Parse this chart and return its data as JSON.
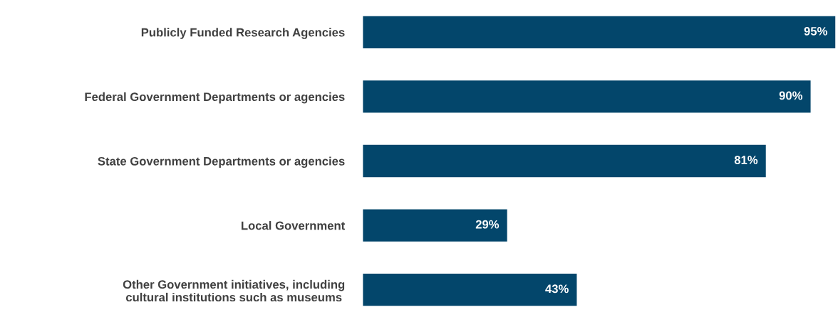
{
  "chart_data": {
    "type": "bar",
    "orientation": "horizontal",
    "categories": [
      "Publicly Funded Research Agencies",
      "Federal Government Departments or agencies",
      "State Government Departments or agencies",
      "Local Government",
      "Other Government initiatives, including\ncultural institutions such as museums"
    ],
    "values": [
      95,
      90,
      81,
      29,
      43
    ],
    "value_labels": [
      "95%",
      "90%",
      "81%",
      "29%",
      "43%"
    ],
    "color": "#03466b",
    "grid": false,
    "legend": false,
    "tick_labels": "y"
  }
}
